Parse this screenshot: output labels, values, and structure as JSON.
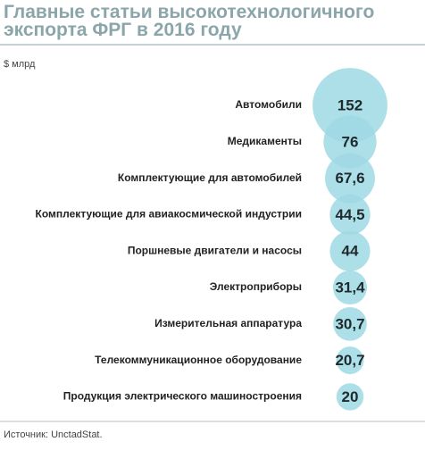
{
  "chart_data": {
    "type": "bubble",
    "title": "Главные статьи высокотехнологичного экспорта ФРГ в 2016 году",
    "unit": "$ млрд",
    "source": "Источник: UnctadStat.",
    "color": "#9fd9e4",
    "categories": [
      "Автомобили",
      "Медикаменты",
      "Комплектующие для автомобилей",
      "Комплектующие для авиакосмической индустрии",
      "Поршневые двигатели и насосы",
      "Электроприборы",
      "Измерительная аппаратура",
      "Телекоммуникационное оборудование",
      "Продукция электрического машиностроения"
    ],
    "values": [
      152,
      76,
      67.6,
      44.5,
      44,
      31.4,
      30.7,
      20.7,
      20
    ],
    "value_labels": [
      "152",
      "76",
      "67,6",
      "44,5",
      "44",
      "31,4",
      "30,7",
      "20,7",
      "20"
    ]
  }
}
